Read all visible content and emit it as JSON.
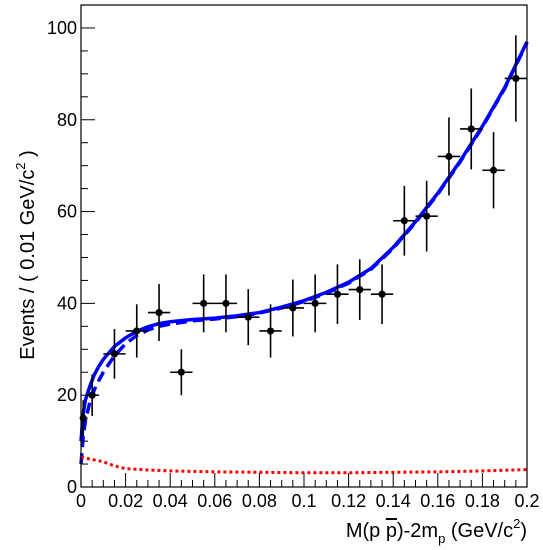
{
  "chart_data": {
    "type": "scatter",
    "title": "",
    "xlabel": {
      "main": "M(p ",
      "pbar": "p",
      "mid": ")-2m",
      "sub": "p",
      "unit_open": " (GeV/c",
      "unit_sup": "2",
      "unit_close": ")"
    },
    "ylabel": {
      "main": "Events / ( 0.01 GeV/c",
      "sup": "2",
      "close": " )"
    },
    "xlim": [
      0,
      0.2
    ],
    "ylim": [
      0,
      105
    ],
    "x_ticks": [
      {
        "value": 0,
        "label": "0"
      },
      {
        "value": 0.02,
        "label": "0.02"
      },
      {
        "value": 0.04,
        "label": "0.04"
      },
      {
        "value": 0.06,
        "label": "0.06"
      },
      {
        "value": 0.08,
        "label": "0.08"
      },
      {
        "value": 0.1,
        "label": "0.1"
      },
      {
        "value": 0.12,
        "label": "0.12"
      },
      {
        "value": 0.14,
        "label": "0.14"
      },
      {
        "value": 0.16,
        "label": "0.16"
      },
      {
        "value": 0.18,
        "label": "0.18"
      },
      {
        "value": 0.2,
        "label": "0.2"
      }
    ],
    "y_ticks": [
      {
        "value": 0,
        "label": "0"
      },
      {
        "value": 20,
        "label": "20"
      },
      {
        "value": 40,
        "label": "40"
      },
      {
        "value": 60,
        "label": "60"
      },
      {
        "value": 80,
        "label": "80"
      },
      {
        "value": 100,
        "label": "100"
      }
    ],
    "x_minor_step": 0.005,
    "y_minor_step": 5,
    "grid": false,
    "legend": "none",
    "data_points": {
      "name": "",
      "color": "#000000",
      "x": [
        0.001,
        0.005,
        0.015,
        0.025,
        0.035,
        0.045,
        0.055,
        0.065,
        0.075,
        0.085,
        0.095,
        0.105,
        0.115,
        0.125,
        0.135,
        0.145,
        0.155,
        0.165,
        0.175,
        0.185,
        0.195
      ],
      "y": [
        15,
        20,
        29,
        34,
        38,
        25,
        40,
        40,
        37,
        34,
        39,
        40,
        42,
        43,
        42,
        58,
        59,
        72,
        78,
        69,
        89
      ],
      "xerr": [
        0.001,
        0.003,
        0.005,
        0.005,
        0.005,
        0.005,
        0.005,
        0.005,
        0.005,
        0.005,
        0.005,
        0.005,
        0.005,
        0.005,
        0.005,
        0.005,
        0.005,
        0.005,
        0.005,
        0.005,
        0.005
      ],
      "yerr": [
        3.9,
        4.5,
        5.4,
        5.8,
        6.2,
        5.0,
        6.3,
        6.3,
        6.1,
        5.8,
        6.2,
        6.3,
        6.5,
        6.6,
        6.5,
        7.6,
        7.7,
        8.5,
        8.8,
        8.3,
        9.4
      ]
    },
    "curves": [
      {
        "name": "",
        "color": "#0000ff",
        "dash": "solid",
        "x": [
          0.0,
          0.001,
          0.002,
          0.004,
          0.006,
          0.008,
          0.01,
          0.015,
          0.02,
          0.025,
          0.03,
          0.035,
          0.04,
          0.05,
          0.06,
          0.07,
          0.08,
          0.09,
          0.1,
          0.11,
          0.12,
          0.13,
          0.14,
          0.15,
          0.16,
          0.17,
          0.18,
          0.19,
          0.2
        ],
        "y": [
          10,
          16,
          19,
          22,
          24.5,
          26.3,
          27.8,
          30.6,
          32.5,
          33.9,
          34.9,
          35.6,
          36.0,
          36.5,
          36.8,
          37.3,
          38.0,
          39.2,
          40.6,
          42.4,
          44.6,
          47.6,
          52.2,
          57.8,
          64.0,
          71.0,
          78.6,
          87.0,
          97.0
        ]
      },
      {
        "name": "",
        "color": "#0000ff",
        "dash": "dashed",
        "x": [
          0.0,
          0.001,
          0.002,
          0.004,
          0.006,
          0.008,
          0.01,
          0.015,
          0.02,
          0.025,
          0.03,
          0.035,
          0.04,
          0.05,
          0.06,
          0.07,
          0.08,
          0.09,
          0.1,
          0.11,
          0.12,
          0.13,
          0.14,
          0.15,
          0.16,
          0.17,
          0.18,
          0.19,
          0.2
        ],
        "y": [
          5,
          11,
          14.5,
          18.5,
          21.2,
          23.2,
          25.0,
          28.6,
          31.2,
          33.0,
          34.2,
          35.0,
          35.5,
          36.2,
          36.6,
          37.1,
          37.9,
          39.0,
          40.4,
          42.2,
          44.4,
          47.4,
          52.0,
          57.6,
          63.8,
          70.8,
          78.4,
          86.8,
          96.8
        ]
      },
      {
        "name": "",
        "color": "#ff0000",
        "dash": "dotted",
        "x": [
          0.0,
          0.005,
          0.01,
          0.015,
          0.02,
          0.03,
          0.04,
          0.05,
          0.06,
          0.08,
          0.1,
          0.12,
          0.14,
          0.16,
          0.18,
          0.2
        ],
        "y": [
          6.5,
          6.0,
          5.5,
          4.6,
          4.0,
          3.7,
          3.5,
          3.4,
          3.3,
          3.2,
          3.1,
          3.1,
          3.2,
          3.3,
          3.5,
          3.8
        ]
      }
    ]
  }
}
